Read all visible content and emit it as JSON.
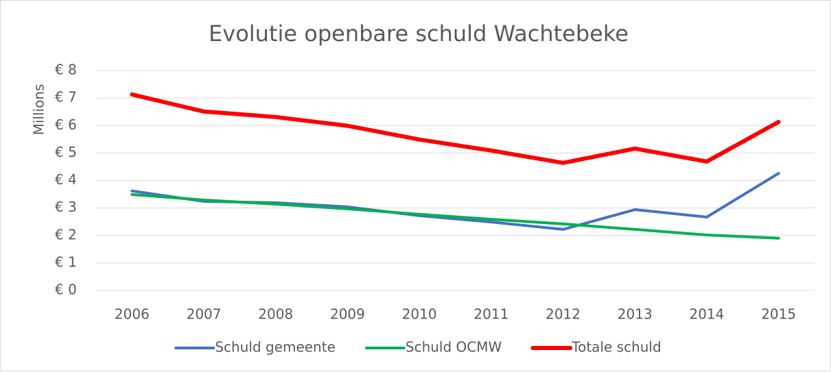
{
  "chart_data": {
    "type": "line",
    "title": "Evolutie openbare schuld Wachtebeke",
    "y_axis_label": "Millions",
    "categories": [
      "2006",
      "2007",
      "2008",
      "2009",
      "2010",
      "2011",
      "2012",
      "2013",
      "2014",
      "2015"
    ],
    "series": [
      {
        "name": "Schuld gemeente",
        "color": "#4472c4",
        "values": [
          3.62,
          3.24,
          3.19,
          3.04,
          2.72,
          2.49,
          2.22,
          2.94,
          2.67,
          4.26
        ]
      },
      {
        "name": "Schuld OCMW",
        "color": "#00b050",
        "values": [
          3.49,
          3.29,
          3.14,
          2.97,
          2.77,
          2.59,
          2.42,
          2.22,
          2.02,
          1.9
        ]
      },
      {
        "name": "Totale schuld",
        "color": "#ff0000",
        "values": [
          7.13,
          6.51,
          6.31,
          5.99,
          5.49,
          5.09,
          4.64,
          5.16,
          4.69,
          6.13
        ]
      }
    ],
    "ylim": [
      0,
      8
    ],
    "yticks": [
      {
        "value": 0,
        "label": "€ 0"
      },
      {
        "value": 1,
        "label": "€ 1"
      },
      {
        "value": 2,
        "label": "€ 2"
      },
      {
        "value": 3,
        "label": "€ 3"
      },
      {
        "value": 4,
        "label": "€ 4"
      },
      {
        "value": 5,
        "label": "€ 5"
      },
      {
        "value": 6,
        "label": "€ 6"
      },
      {
        "value": 7,
        "label": "€ 7"
      },
      {
        "value": 8,
        "label": "€ 8"
      }
    ],
    "grid": true,
    "legend": "bottom"
  }
}
